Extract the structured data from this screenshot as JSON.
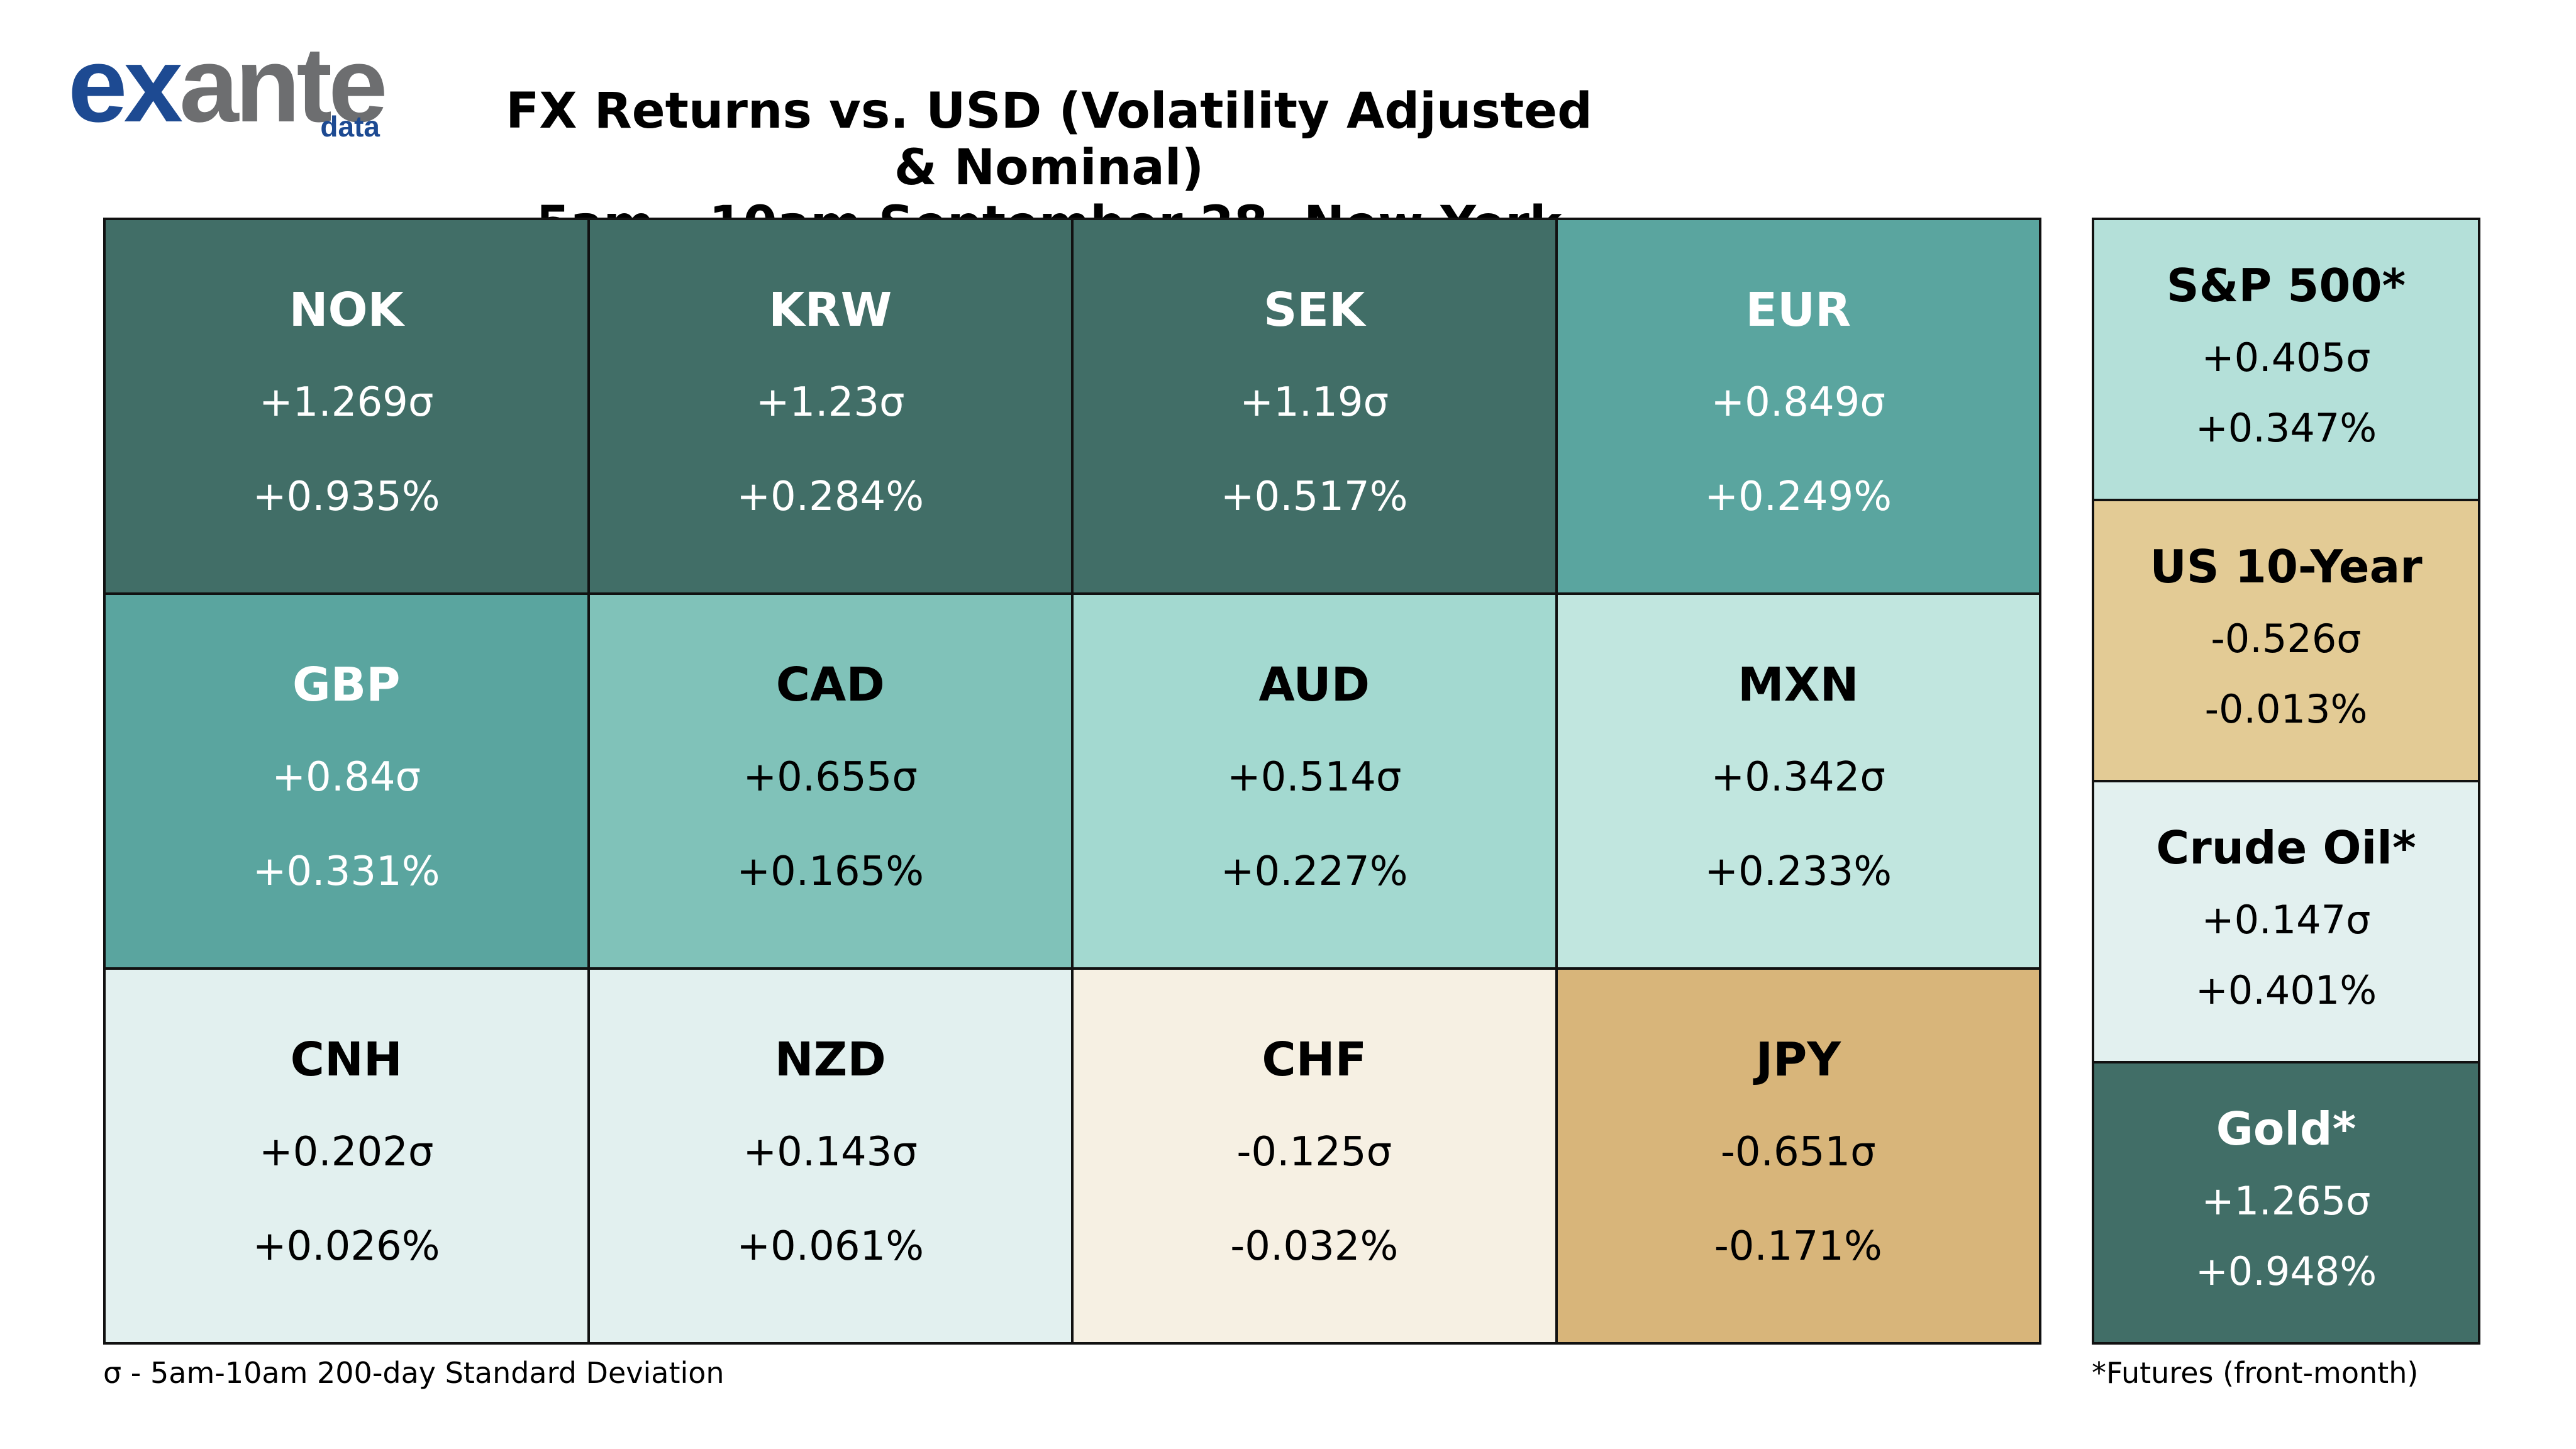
{
  "logo": {
    "part1": "ex",
    "part2": "ante",
    "sub": "data"
  },
  "title": {
    "line1": "FX Returns vs. USD (Volatility Adjusted & Nominal)",
    "line2": "5am - 10am September 28, New York"
  },
  "colors": {
    "dark_teal": "#416e67",
    "mid_teal": "#5aa59f",
    "teal": "#80c2b9",
    "light_teal": "#a3d9d0",
    "pale_teal": "#b4e0d9",
    "paler_teal": "#c1e6df",
    "palest_teal": "#e2f0ef",
    "cream": "#f6f0e3",
    "sand": "#e3cb95",
    "tan": "#d8b57a"
  },
  "chart_data": {
    "type": "table",
    "title": "FX Returns vs. USD (Volatility Adjusted & Nominal)",
    "subtitle": "5am - 10am September 28, New York",
    "columns": [
      "name",
      "volatility_adjusted",
      "nominal"
    ],
    "fx": [
      {
        "name": "NOK",
        "sigma": "+1.269σ",
        "pct": "+0.935%",
        "sigma_value": 1.269,
        "pct_value": 0.935,
        "bg": "#416e67",
        "fg": "#ffffff"
      },
      {
        "name": "KRW",
        "sigma": "+1.23σ",
        "pct": "+0.284%",
        "sigma_value": 1.23,
        "pct_value": 0.284,
        "bg": "#416e67",
        "fg": "#ffffff"
      },
      {
        "name": "SEK",
        "sigma": "+1.19σ",
        "pct": "+0.517%",
        "sigma_value": 1.19,
        "pct_value": 0.517,
        "bg": "#416e67",
        "fg": "#ffffff"
      },
      {
        "name": "EUR",
        "sigma": "+0.849σ",
        "pct": "+0.249%",
        "sigma_value": 0.849,
        "pct_value": 0.249,
        "bg": "#5aa59f",
        "fg": "#ffffff"
      },
      {
        "name": "GBP",
        "sigma": "+0.84σ",
        "pct": "+0.331%",
        "sigma_value": 0.84,
        "pct_value": 0.331,
        "bg": "#5aa59f",
        "fg": "#ffffff"
      },
      {
        "name": "CAD",
        "sigma": "+0.655σ",
        "pct": "+0.165%",
        "sigma_value": 0.655,
        "pct_value": 0.165,
        "bg": "#80c2b9",
        "fg": "#000000"
      },
      {
        "name": "AUD",
        "sigma": "+0.514σ",
        "pct": "+0.227%",
        "sigma_value": 0.514,
        "pct_value": 0.227,
        "bg": "#a3d9d0",
        "fg": "#000000"
      },
      {
        "name": "MXN",
        "sigma": "+0.342σ",
        "pct": "+0.233%",
        "sigma_value": 0.342,
        "pct_value": 0.233,
        "bg": "#c1e6df",
        "fg": "#000000"
      },
      {
        "name": "CNH",
        "sigma": "+0.202σ",
        "pct": "+0.026%",
        "sigma_value": 0.202,
        "pct_value": 0.026,
        "bg": "#e2f0ef",
        "fg": "#000000"
      },
      {
        "name": "NZD",
        "sigma": "+0.143σ",
        "pct": "+0.061%",
        "sigma_value": 0.143,
        "pct_value": 0.061,
        "bg": "#e2f0ef",
        "fg": "#000000"
      },
      {
        "name": "CHF",
        "sigma": "-0.125σ",
        "pct": "-0.032%",
        "sigma_value": -0.125,
        "pct_value": -0.032,
        "bg": "#f6f0e3",
        "fg": "#000000"
      },
      {
        "name": "JPY",
        "sigma": "-0.651σ",
        "pct": "-0.171%",
        "sigma_value": -0.651,
        "pct_value": -0.171,
        "bg": "#d8b57a",
        "fg": "#000000"
      }
    ],
    "other": [
      {
        "name": "S&P 500*",
        "sigma": "+0.405σ",
        "pct": "+0.347%",
        "sigma_value": 0.405,
        "pct_value": 0.347,
        "bg": "#b4e0d9",
        "fg": "#000000"
      },
      {
        "name": "US 10-Year",
        "sigma": "-0.526σ",
        "pct": "-0.013%",
        "sigma_value": -0.526,
        "pct_value": -0.013,
        "bg": "#e3cb95",
        "fg": "#000000"
      },
      {
        "name": "Crude Oil*",
        "sigma": "+0.147σ",
        "pct": "+0.401%",
        "sigma_value": 0.147,
        "pct_value": 0.401,
        "bg": "#e2f0ef",
        "fg": "#000000"
      },
      {
        "name": "Gold*",
        "sigma": "+1.265σ",
        "pct": "+0.948%",
        "sigma_value": 1.265,
        "pct_value": 0.948,
        "bg": "#416e67",
        "fg": "#ffffff"
      }
    ]
  },
  "footnotes": {
    "left": "σ - 5am-10am 200-day Standard Deviation",
    "right": "*Futures (front-month)"
  }
}
